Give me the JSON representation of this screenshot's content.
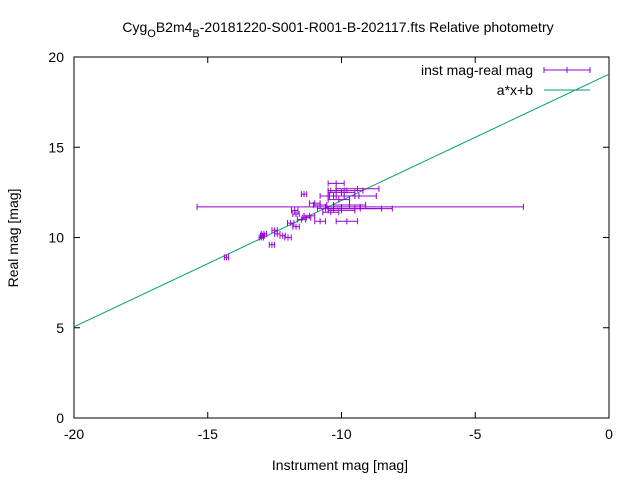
{
  "chart_data": {
    "type": "scatter",
    "title_parts": {
      "prefix": "Cyg",
      "sub1": "O",
      "middle": "B2m4",
      "sub2": "B",
      "suffix": "-20181220-S001-R001-B-202117.fts Relative photometry"
    },
    "xlabel": "Instrument mag [mag]",
    "ylabel": "Real mag [mag]",
    "xlim": [
      -20,
      0
    ],
    "ylim": [
      0,
      20
    ],
    "xticks": [
      -20,
      -15,
      -10,
      -5,
      0
    ],
    "yticks": [
      0,
      5,
      10,
      15,
      20
    ],
    "grid": false,
    "legend_position": "top-right",
    "colors": {
      "points": "#9400d3",
      "fit": "#009e73"
    },
    "series": [
      {
        "name": "inst mag-real mag",
        "style": "points-with-x-errorbars",
        "points": [
          {
            "x": -14.3,
            "y": 8.9,
            "xerr": 0.08
          },
          {
            "x": -13.0,
            "y": 10.0,
            "xerr": 0.08
          },
          {
            "x": -12.9,
            "y": 10.2,
            "xerr": 0.1
          },
          {
            "x": -12.95,
            "y": 10.1,
            "xerr": 0.08
          },
          {
            "x": -12.6,
            "y": 9.6,
            "xerr": 0.1
          },
          {
            "x": -12.5,
            "y": 10.4,
            "xerr": 0.1
          },
          {
            "x": -12.4,
            "y": 10.2,
            "xerr": 0.1
          },
          {
            "x": -12.2,
            "y": 10.1,
            "xerr": 0.1
          },
          {
            "x": -12.0,
            "y": 10.0,
            "xerr": 0.12
          },
          {
            "x": -11.9,
            "y": 10.8,
            "xerr": 0.12
          },
          {
            "x": -11.75,
            "y": 11.5,
            "xerr": 0.12
          },
          {
            "x": -11.7,
            "y": 11.3,
            "xerr": 0.12
          },
          {
            "x": -11.7,
            "y": 10.6,
            "xerr": 0.12
          },
          {
            "x": -11.5,
            "y": 11.0,
            "xerr": 0.15
          },
          {
            "x": -11.4,
            "y": 12.4,
            "xerr": 0.1
          },
          {
            "x": -11.3,
            "y": 11.1,
            "xerr": 0.15
          },
          {
            "x": -11.2,
            "y": 11.2,
            "xerr": 0.2
          },
          {
            "x": -11.0,
            "y": 11.9,
            "xerr": 0.2
          },
          {
            "x": -10.8,
            "y": 11.8,
            "xerr": 0.25
          },
          {
            "x": -10.8,
            "y": 10.9,
            "xerr": 0.2
          },
          {
            "x": -10.6,
            "y": 11.6,
            "xerr": 0.3
          },
          {
            "x": -10.5,
            "y": 12.3,
            "xerr": 0.3
          },
          {
            "x": -10.4,
            "y": 11.4,
            "xerr": 0.3
          },
          {
            "x": -10.3,
            "y": 11.7,
            "xerr": 0.3
          },
          {
            "x": -10.2,
            "y": 13.0,
            "xerr": 0.3
          },
          {
            "x": -10.2,
            "y": 12.6,
            "xerr": 0.3
          },
          {
            "x": -10.1,
            "y": 12.1,
            "xerr": 0.4
          },
          {
            "x": -10.0,
            "y": 12.5,
            "xerr": 0.5
          },
          {
            "x": -10.0,
            "y": 11.5,
            "xerr": 0.5
          },
          {
            "x": -9.9,
            "y": 12.3,
            "xerr": 0.55
          },
          {
            "x": -9.8,
            "y": 12.6,
            "xerr": 0.6
          },
          {
            "x": -9.8,
            "y": 10.9,
            "xerr": 0.4
          },
          {
            "x": -9.7,
            "y": 11.8,
            "xerr": 0.6
          },
          {
            "x": -9.5,
            "y": 12.3,
            "xerr": 0.8
          },
          {
            "x": -9.5,
            "y": 11.6,
            "xerr": 1.0
          },
          {
            "x": -9.4,
            "y": 12.7,
            "xerr": 0.8
          },
          {
            "x": -9.3,
            "y": 11.6,
            "xerr": 1.2
          },
          {
            "x": -9.3,
            "y": 11.7,
            "xerr": 6.1
          }
        ]
      },
      {
        "name": "a*x+b",
        "style": "line",
        "line": {
          "x": [
            -20,
            0
          ],
          "y": [
            5.05,
            19.05
          ]
        }
      }
    ]
  }
}
